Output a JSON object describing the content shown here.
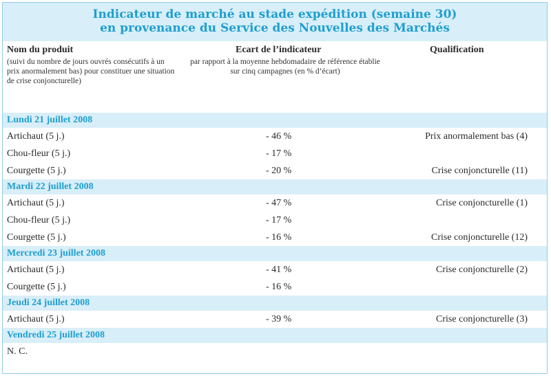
{
  "title": {
    "line1": "Indicateur de marché au stade expédition (semaine 30)",
    "line2": "en provenance du Service des Nouvelles des Marchés"
  },
  "headers": {
    "product": "Nom du produit",
    "product_sub": "(suivi du nombre de jours ouvrés consécutifs à un prix anormalement bas) pour constituer une situation de crise conjoncturelle)",
    "ecart": "Ecart de l’indicateur",
    "ecart_sub": "par rapport à la moyenne hebdomadaire de référence établie sur cinq campagnes (en % d’écart)",
    "qualification": "Qualification"
  },
  "sections": [
    {
      "date": "Lundi 21 juillet 2008",
      "rows": [
        {
          "product": "Artichaut (5 j.)",
          "ecart": "- 46 %",
          "qualification": "Prix anormalement bas (4)"
        },
        {
          "product": "Chou-fleur (5 j.)",
          "ecart": "- 17 %",
          "qualification": ""
        },
        {
          "product": "Courgette (5 j.)",
          "ecart": "- 20 %",
          "qualification": "Crise conjoncturelle (11)"
        }
      ]
    },
    {
      "date": "Mardi 22 juillet 2008",
      "rows": [
        {
          "product": "Artichaut (5 j.)",
          "ecart": "- 47 %",
          "qualification": "Crise conjoncturelle (1)"
        },
        {
          "product": "Chou-fleur (5 j.)",
          "ecart": "- 17 %",
          "qualification": ""
        },
        {
          "product": "Courgette (5 j.)",
          "ecart": "- 16 %",
          "qualification": "Crise conjoncturelle (12)"
        }
      ]
    },
    {
      "date": "Mercredi 23 juillet 2008",
      "rows": [
        {
          "product": "Artichaut (5 j.)",
          "ecart": "- 41 %",
          "qualification": "Crise conjoncturelle (2)"
        },
        {
          "product": "Courgette (5 j.)",
          "ecart": "- 16 %",
          "qualification": ""
        }
      ]
    },
    {
      "date": "Jeudi 24 juillet 2008",
      "rows": [
        {
          "product": "Artichaut (5 j.)",
          "ecart": "- 39 %",
          "qualification": "Crise conjoncturelle (3)"
        }
      ]
    },
    {
      "date": "Vendredi 25 juillet 2008",
      "rows": [
        {
          "product": "N. C.",
          "ecart": "",
          "qualification": ""
        }
      ]
    }
  ]
}
